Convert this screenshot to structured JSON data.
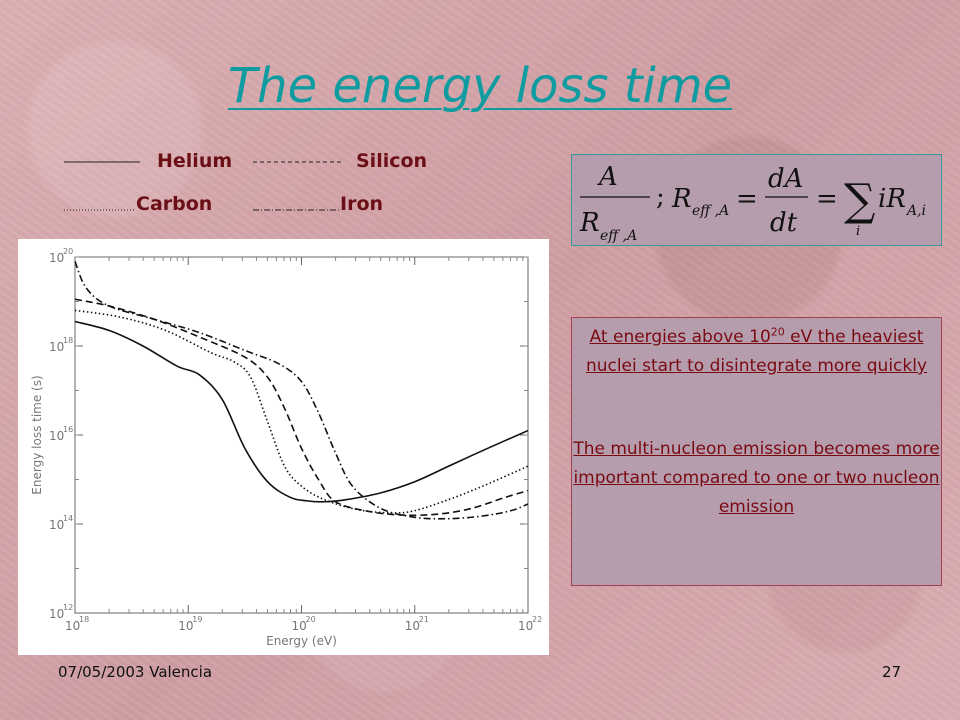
{
  "slide": {
    "title": "The energy loss time",
    "legend": [
      {
        "label": "Helium",
        "style": "solid"
      },
      {
        "label": "Silicon",
        "style": "dashed"
      },
      {
        "label": "Carbon",
        "style": "dotted"
      },
      {
        "label": "Iron",
        "style": "dash-dot"
      }
    ],
    "info_1_pre": "At energies above 10",
    "info_1_sup": "20",
    "info_1_post": " eV the heaviest nuclei start to disintegrate more quickly",
    "info_2": "The multi-nucleon emission becomes more important compared to one or two nucleon emission",
    "footer_left": "07/05/2003 Valencia",
    "footer_right": "27",
    "colors": {
      "title": "#0e9ca1",
      "text": "#7a0a12",
      "box_fill": "#b59dad"
    }
  },
  "chart_data": {
    "type": "line",
    "xlabel": "Energy (eV)",
    "ylabel": "Energy loss time (s)",
    "x_scale": "log",
    "y_scale": "log",
    "xlim": [
      1e+18,
      1e+22
    ],
    "ylim": [
      1000000000000.0,
      1e+20
    ],
    "x_ticks": [
      18,
      19,
      20,
      21,
      22
    ],
    "y_ticks": [
      12,
      14,
      16,
      18,
      20
    ],
    "tick_base": "10",
    "series": [
      {
        "name": "Helium",
        "style": "solid",
        "log_x": [
          18.0,
          18.3,
          18.6,
          18.9,
          19.1,
          19.3,
          19.5,
          19.7,
          19.9,
          20.05,
          20.2,
          20.4,
          20.7,
          21.0,
          21.3,
          21.6,
          22.0
        ],
        "log_y": [
          18.55,
          18.35,
          18.0,
          17.55,
          17.35,
          16.8,
          15.7,
          14.95,
          14.6,
          14.52,
          14.5,
          14.55,
          14.7,
          14.95,
          15.3,
          15.65,
          16.1
        ]
      },
      {
        "name": "Carbon",
        "style": "dotted",
        "log_x": [
          18.0,
          18.4,
          18.8,
          19.2,
          19.4,
          19.55,
          19.7,
          19.85,
          20.0,
          20.2,
          20.5,
          20.8,
          21.0,
          21.3,
          21.6,
          22.0
        ],
        "log_y": [
          18.8,
          18.65,
          18.35,
          17.85,
          17.65,
          17.3,
          16.3,
          15.3,
          14.85,
          14.55,
          14.32,
          14.25,
          14.3,
          14.55,
          14.85,
          15.3
        ]
      },
      {
        "name": "Silicon",
        "style": "dashed",
        "log_x": [
          18.0,
          18.3,
          18.7,
          19.1,
          19.5,
          19.7,
          19.85,
          20.0,
          20.15,
          20.3,
          20.6,
          20.9,
          21.2,
          21.5,
          21.8,
          22.0
        ],
        "log_y": [
          19.05,
          18.9,
          18.6,
          18.2,
          17.75,
          17.3,
          16.6,
          15.7,
          15.0,
          14.5,
          14.28,
          14.2,
          14.22,
          14.35,
          14.6,
          14.75
        ]
      },
      {
        "name": "Iron",
        "style": "dash-dot",
        "log_x": [
          18.0,
          18.1,
          18.3,
          18.7,
          19.1,
          19.5,
          19.8,
          20.0,
          20.15,
          20.3,
          20.45,
          20.7,
          21.0,
          21.3,
          21.6,
          21.85,
          22.0
        ],
        "log_y": [
          19.9,
          19.3,
          18.9,
          18.6,
          18.3,
          17.9,
          17.6,
          17.2,
          16.5,
          15.6,
          14.85,
          14.35,
          14.15,
          14.12,
          14.18,
          14.3,
          14.45
        ]
      }
    ]
  }
}
